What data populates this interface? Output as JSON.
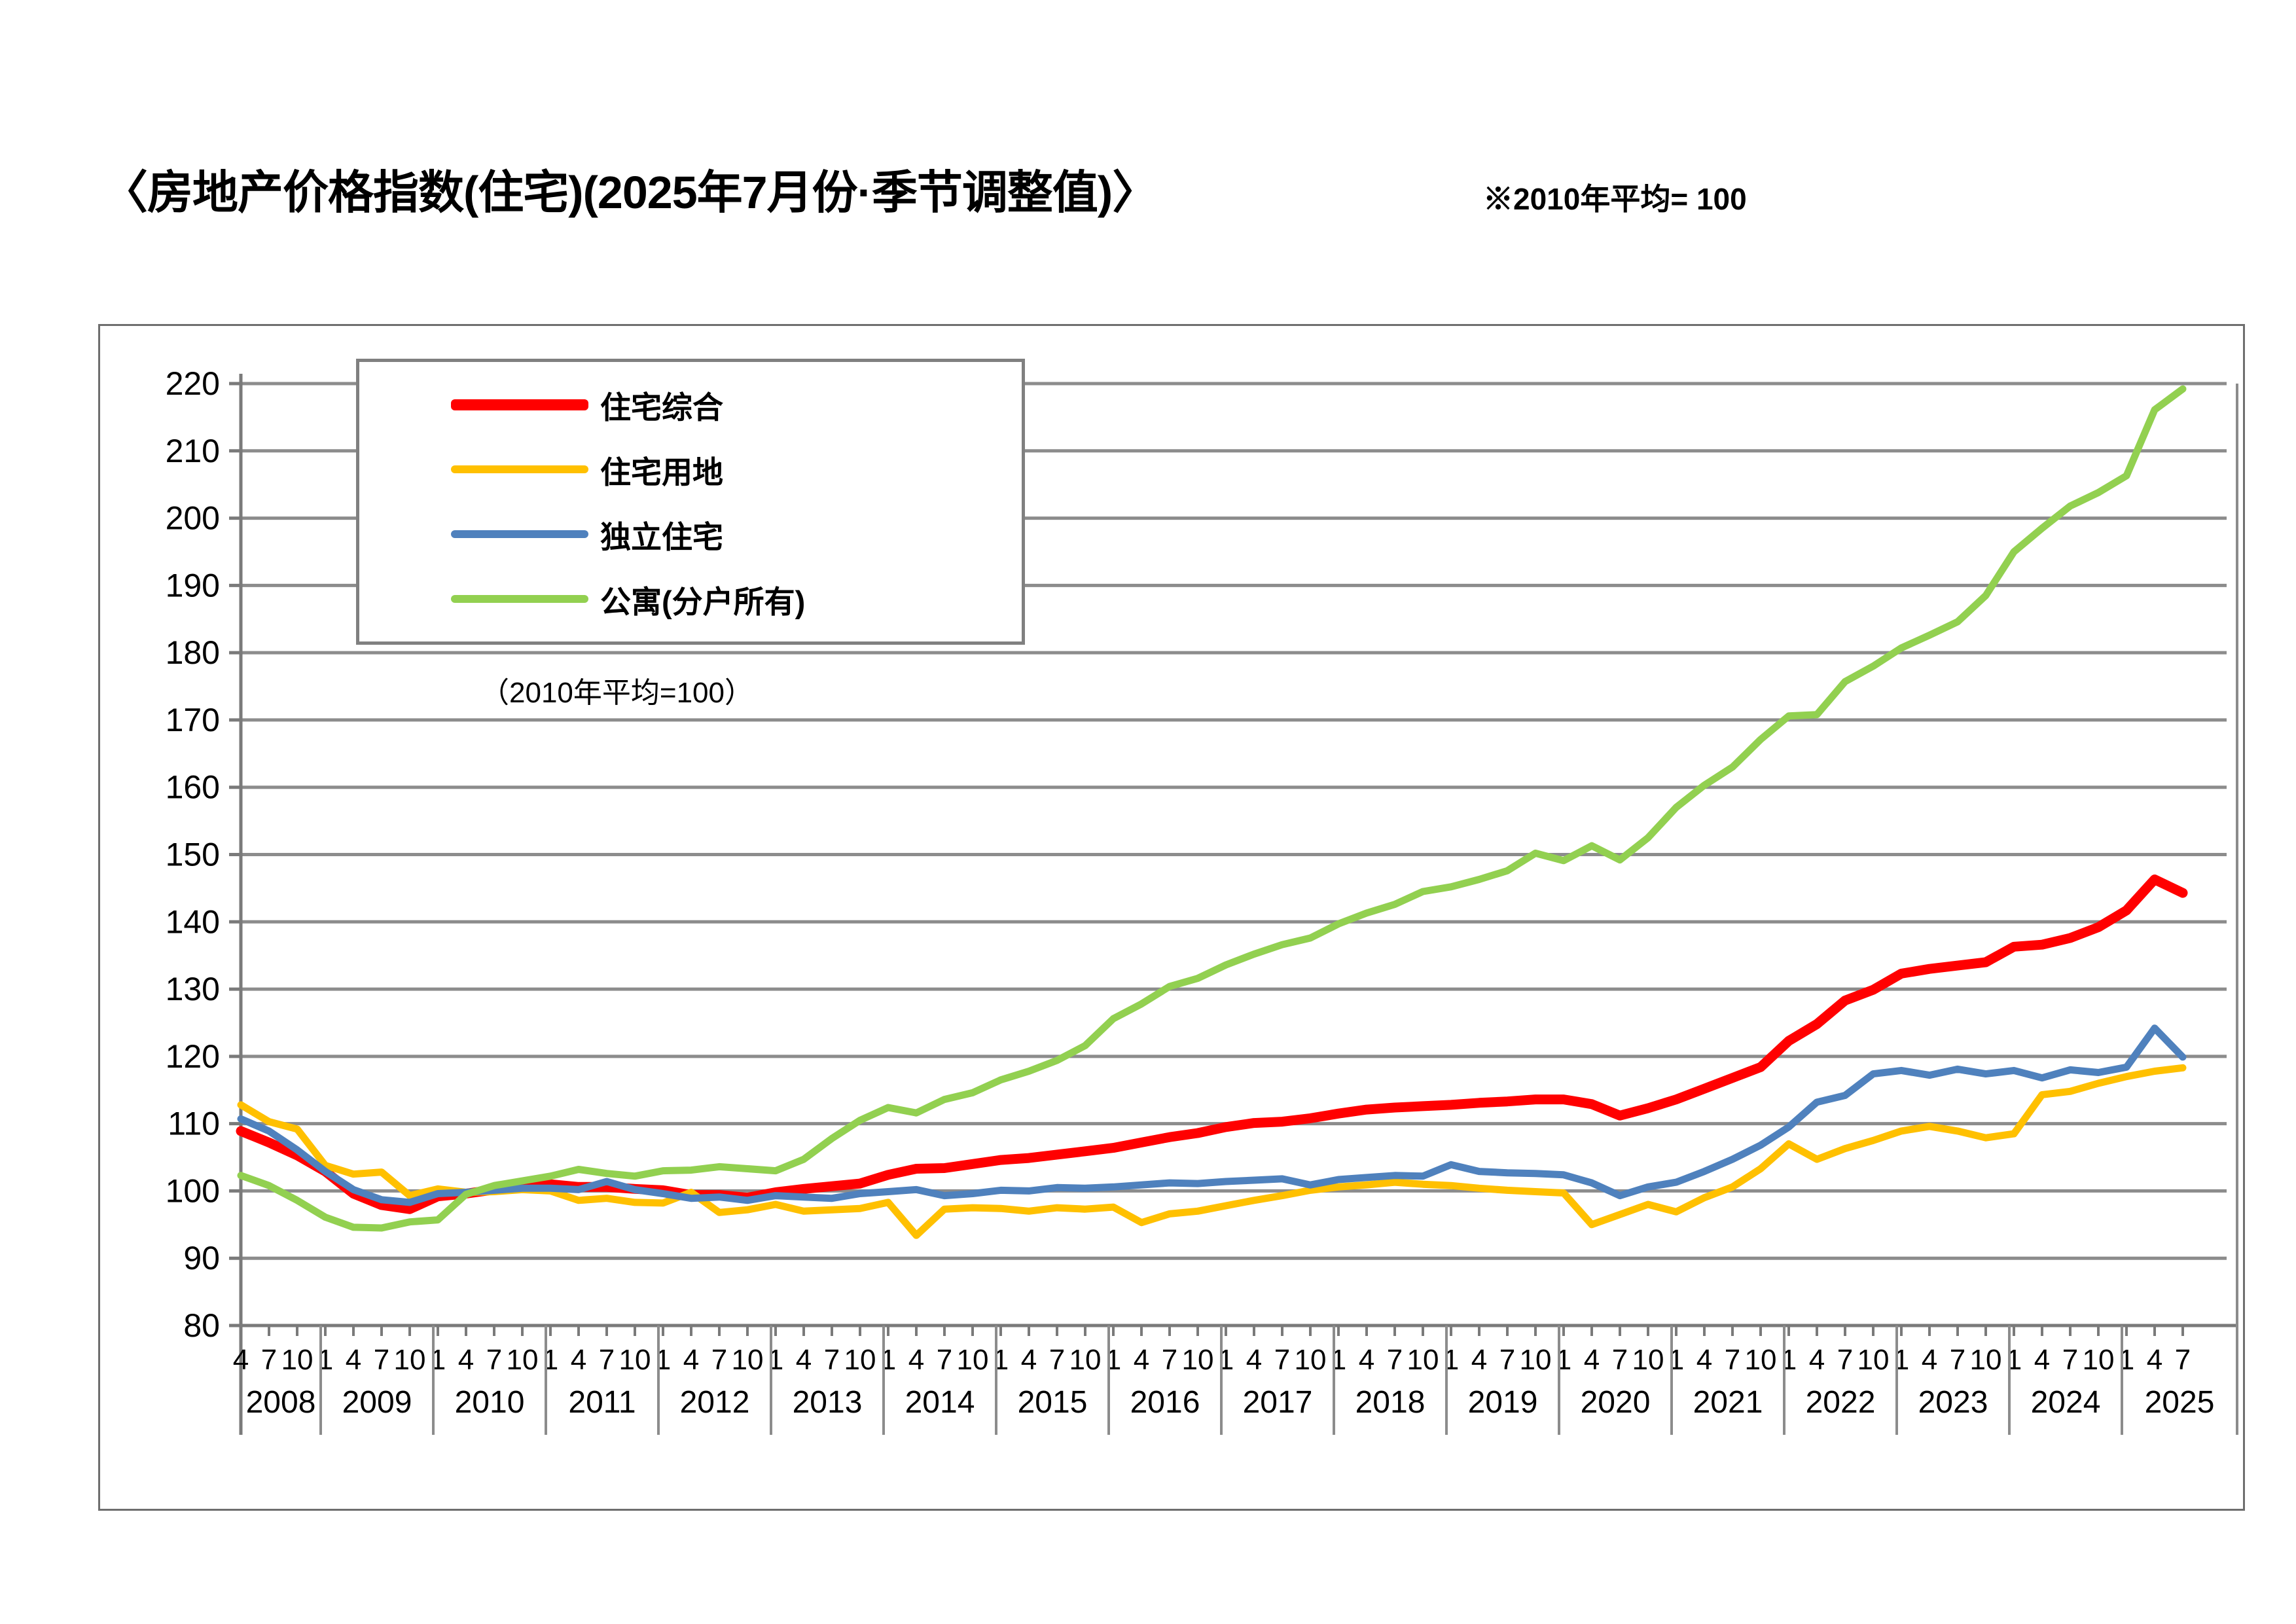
{
  "header": {
    "title": "〈房地产价格指数(住宅)(2025年7月份·季节调整值)〉",
    "note": "※2010年平均= 100"
  },
  "legend": {
    "subnote": "（2010年平均=100）",
    "position": "top-left-inside"
  },
  "chart_data": {
    "type": "line",
    "title": "房地产价格指数(住宅) 2025年7月份 季节调整值",
    "xlabel": "",
    "ylabel": "",
    "ylim": [
      80,
      220
    ],
    "ytick_step": 10,
    "grid": "horizontal",
    "x_tick_months_shown": [
      "4",
      "7",
      "10",
      "1"
    ],
    "x_years": [
      "2008",
      "2009",
      "2010",
      "2011",
      "2012",
      "2013",
      "2014",
      "2015",
      "2016",
      "2017",
      "2018",
      "2019",
      "2020",
      "2021",
      "2022",
      "2023",
      "2024",
      "2025"
    ],
    "x_quarters": [
      "2008-04",
      "2008-07",
      "2008-10",
      "2009-01",
      "2009-04",
      "2009-07",
      "2009-10",
      "2010-01",
      "2010-04",
      "2010-07",
      "2010-10",
      "2011-01",
      "2011-04",
      "2011-07",
      "2011-10",
      "2012-01",
      "2012-04",
      "2012-07",
      "2012-10",
      "2013-01",
      "2013-04",
      "2013-07",
      "2013-10",
      "2014-01",
      "2014-04",
      "2014-07",
      "2014-10",
      "2015-01",
      "2015-04",
      "2015-07",
      "2015-10",
      "2016-01",
      "2016-04",
      "2016-07",
      "2016-10",
      "2017-01",
      "2017-04",
      "2017-07",
      "2017-10",
      "2018-01",
      "2018-04",
      "2018-07",
      "2018-10",
      "2019-01",
      "2019-04",
      "2019-07",
      "2019-10",
      "2020-01",
      "2020-04",
      "2020-07",
      "2020-10",
      "2021-01",
      "2021-04",
      "2021-07",
      "2021-10",
      "2022-01",
      "2022-04",
      "2022-07",
      "2022-10",
      "2023-01",
      "2023-04",
      "2023-07",
      "2023-10",
      "2024-01",
      "2024-04",
      "2024-07",
      "2024-10",
      "2025-01",
      "2025-04",
      "2025-07"
    ],
    "series": [
      {
        "name": "住宅综合",
        "color": "#ff0000",
        "stroke_width": 15,
        "values": [
          108.9,
          107.2,
          105.3,
          102.9,
          99.6,
          97.9,
          97.3,
          99.2,
          99.6,
          100.2,
          100.6,
          101.0,
          100.6,
          100.6,
          100.3,
          100.1,
          99.4,
          99.4,
          99.0,
          99.8,
          100.3,
          100.7,
          101.1,
          102.4,
          103.3,
          103.4,
          104.0,
          104.6,
          104.9,
          105.4,
          105.9,
          106.4,
          107.2,
          108.0,
          108.6,
          109.5,
          110.1,
          110.3,
          110.8,
          111.5,
          112.1,
          112.4,
          112.6,
          112.8,
          113.1,
          113.3,
          113.6,
          113.6,
          112.9,
          111.2,
          112.3,
          113.6,
          115.2,
          116.8,
          118.4,
          122.3,
          124.8,
          128.3,
          129.9,
          132.3,
          133.0,
          133.5,
          134.0,
          136.3,
          136.6,
          137.6,
          139.2,
          141.7,
          146.3,
          144.3
        ]
      },
      {
        "name": "住宅用地",
        "color": "#ffc000",
        "stroke_width": 11,
        "values": [
          112.8,
          110.3,
          109.2,
          103.8,
          102.5,
          102.8,
          99.3,
          100.3,
          99.8,
          99.9,
          100.2,
          100.0,
          98.6,
          98.9,
          98.3,
          98.2,
          99.8,
          96.8,
          97.2,
          98.0,
          97.0,
          97.2,
          97.4,
          98.3,
          93.4,
          97.3,
          97.5,
          97.4,
          97.0,
          97.5,
          97.3,
          97.6,
          95.3,
          96.6,
          97.0,
          97.8,
          98.6,
          99.3,
          100.1,
          100.6,
          100.9,
          101.3,
          101.0,
          100.8,
          100.4,
          100.1,
          99.9,
          99.7,
          95.0,
          96.5,
          98.0,
          96.9,
          99.0,
          100.6,
          103.3,
          107.0,
          104.7,
          106.3,
          107.5,
          108.9,
          109.6,
          108.9,
          107.9,
          108.5,
          114.3,
          114.8,
          116.0,
          117.0,
          117.8,
          118.3
        ]
      },
      {
        "name": "独立住宅",
        "color": "#4f81bd",
        "stroke_width": 11,
        "values": [
          110.7,
          108.9,
          106.1,
          102.9,
          100.2,
          98.7,
          98.3,
          99.6,
          99.8,
          100.1,
          100.4,
          100.4,
          100.2,
          101.4,
          100.2,
          99.6,
          98.9,
          99.1,
          98.6,
          99.3,
          99.1,
          98.9,
          99.6,
          99.9,
          100.2,
          99.3,
          99.6,
          100.1,
          100.0,
          100.5,
          100.4,
          100.6,
          100.9,
          101.2,
          101.1,
          101.4,
          101.6,
          101.8,
          100.9,
          101.7,
          102.0,
          102.3,
          102.2,
          103.9,
          102.9,
          102.7,
          102.6,
          102.4,
          101.2,
          99.3,
          100.6,
          101.3,
          102.9,
          104.7,
          106.8,
          109.5,
          113.2,
          114.2,
          117.4,
          117.9,
          117.2,
          118.1,
          117.4,
          117.9,
          116.8,
          118.0,
          117.6,
          118.4,
          124.2,
          119.9
        ]
      },
      {
        "name": "公寓(分户所有)",
        "color": "#92d050",
        "stroke_width": 11,
        "values": [
          102.3,
          100.8,
          98.6,
          96.1,
          94.6,
          94.5,
          95.4,
          95.7,
          99.5,
          100.8,
          101.5,
          102.2,
          103.2,
          102.6,
          102.2,
          103.0,
          103.1,
          103.6,
          103.3,
          103.0,
          104.7,
          107.8,
          110.5,
          112.4,
          111.6,
          113.6,
          114.6,
          116.5,
          117.8,
          119.4,
          121.6,
          125.6,
          127.8,
          130.4,
          131.6,
          133.6,
          135.2,
          136.6,
          137.6,
          139.7,
          141.3,
          142.6,
          144.5,
          145.2,
          146.3,
          147.6,
          150.2,
          149.1,
          151.3,
          149.2,
          152.5,
          157.0,
          160.3,
          163.0,
          167.1,
          170.6,
          170.8,
          175.7,
          178.0,
          180.7,
          182.6,
          184.6,
          188.5,
          195.0,
          198.5,
          201.8,
          203.8,
          206.3,
          216.1,
          219.2
        ]
      }
    ]
  }
}
